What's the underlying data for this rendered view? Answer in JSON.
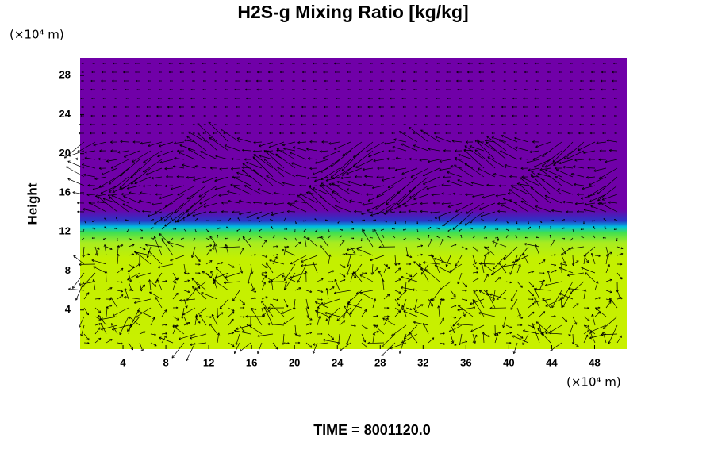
{
  "chart_data": {
    "type": "field",
    "title": "H2S-g Mixing Ratio [kg/kg]",
    "y_unit": "(×10⁴ m)",
    "x_unit": "(×10⁴ m)",
    "y_label": "Height",
    "footer": "TIME = 8001120.0",
    "xlim": [
      0,
      51
    ],
    "xticks": [
      4,
      8,
      12,
      16,
      20,
      24,
      28,
      32,
      36,
      40,
      44,
      48
    ],
    "ylim": [
      0,
      29.8
    ],
    "yticks": [
      4,
      8,
      12,
      16,
      20,
      24,
      28
    ]
  }
}
